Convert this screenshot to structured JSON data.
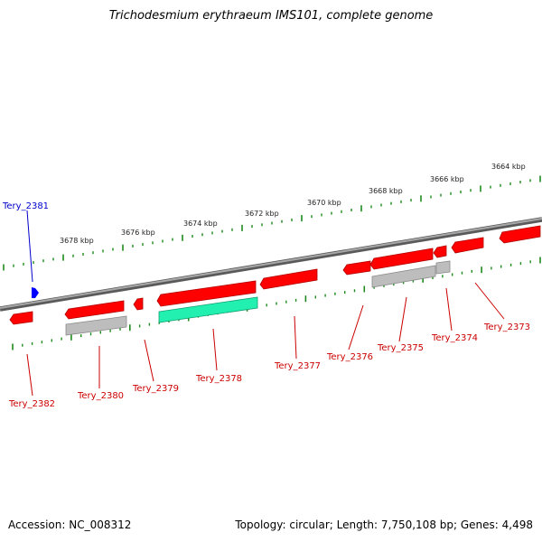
{
  "title": "Trichodesmium erythraeum IMS101, complete genome",
  "footer": {
    "accession": "Accession: NC_008312",
    "summary": "Topology: circular; Length: 7,750,108 bp; Genes: 4,498"
  },
  "colors": {
    "backbone": "#808080",
    "gene_red": "#ff0000",
    "gene_red_dark": "#b00000",
    "gene_grey": "#bdbdbd",
    "gene_green": "#22f0b0",
    "ticks": "#1c8a1c",
    "label_red": "#cc0000",
    "label_blue": "#0000cc",
    "marker": "#0000ff"
  },
  "scale_labels": [
    "3664 kbp",
    "3666 kbp",
    "3668 kbp",
    "3670 kbp",
    "3672 kbp",
    "3674 kbp",
    "3676 kbp",
    "3678 kbp"
  ],
  "gene_labels": [
    {
      "name": "Tery_2381",
      "color": "blue"
    },
    {
      "name": "Tery_2382",
      "color": "red"
    },
    {
      "name": "Tery_2380",
      "color": "red"
    },
    {
      "name": "Tery_2379",
      "color": "red"
    },
    {
      "name": "Tery_2378",
      "color": "red"
    },
    {
      "name": "Tery_2377",
      "color": "red"
    },
    {
      "name": "Tery_2376",
      "color": "red"
    },
    {
      "name": "Tery_2375",
      "color": "red"
    },
    {
      "name": "Tery_2374",
      "color": "red"
    },
    {
      "name": "Tery_2373",
      "color": "red"
    }
  ]
}
